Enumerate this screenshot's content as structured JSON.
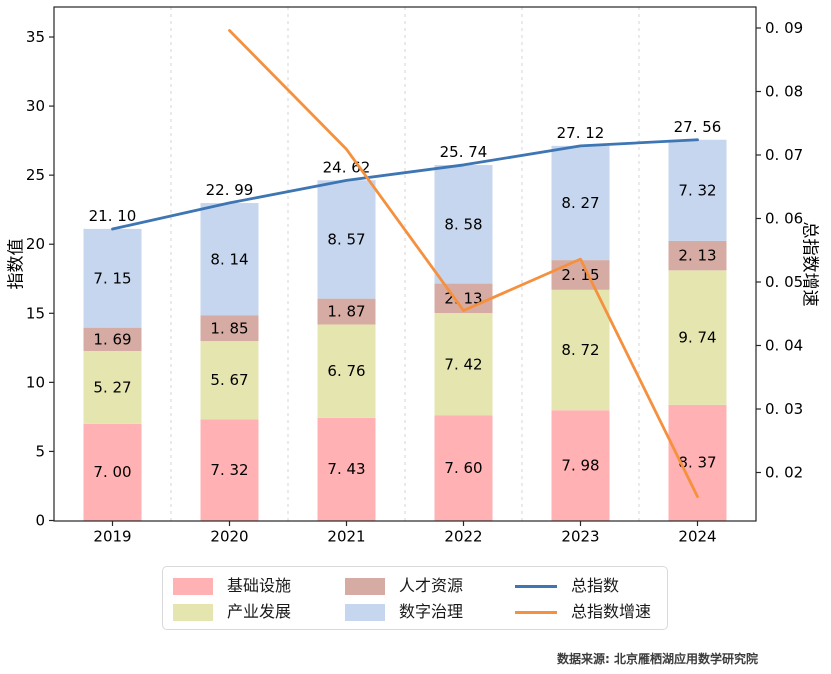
{
  "source_note": "数据来源: 北京雁栖湖应用数学研究院",
  "chart_data": {
    "type": "bar",
    "subtype": "stacked-bars-with-overlay-lines",
    "categories": [
      "2019",
      "2020",
      "2021",
      "2022",
      "2023",
      "2024"
    ],
    "series": [
      {
        "name": "基础设施",
        "type": "bar",
        "color": "#ffb1b3",
        "values": [
          7.0,
          7.32,
          7.43,
          7.6,
          7.98,
          8.37
        ]
      },
      {
        "name": "产业发展",
        "type": "bar",
        "color": "#e5e5b0",
        "values": [
          5.27,
          5.67,
          6.76,
          7.42,
          8.72,
          9.74
        ]
      },
      {
        "name": "人才资源",
        "type": "bar",
        "color": "#d5aba3",
        "values": [
          1.69,
          1.85,
          1.87,
          2.13,
          2.15,
          2.13
        ]
      },
      {
        "name": "数字治理",
        "type": "bar",
        "color": "#c5d6ee",
        "values": [
          7.15,
          8.14,
          8.57,
          8.58,
          8.27,
          7.32
        ]
      },
      {
        "name": "总指数",
        "type": "line",
        "axis": "left",
        "color": "#3d76b3",
        "values": [
          21.1,
          22.99,
          24.62,
          25.74,
          27.12,
          27.56
        ]
      },
      {
        "name": "总指数增速",
        "type": "line",
        "axis": "right",
        "color": "#f5913e",
        "values": [
          null,
          0.0896,
          0.0709,
          0.0455,
          0.0536,
          0.0162
        ]
      }
    ],
    "totals": [
      21.1,
      22.99,
      24.62,
      25.74,
      27.12,
      27.56
    ],
    "ylabel_left": "指数值",
    "ylabel_right": "总指数增速",
    "yticks_left": [
      0,
      5,
      10,
      15,
      20,
      25,
      30,
      35
    ],
    "yticks_right": [
      0.09,
      0.08,
      0.07,
      0.06,
      0.05,
      0.04,
      0.03,
      0.02
    ],
    "ylim_left": [
      0,
      37.2
    ],
    "ylim_right": [
      0.0124,
      0.0933
    ],
    "grid": "vertical-dashed-between-categories",
    "legend_position": "bottom-center",
    "colors": {
      "gridline": "#d6d6d6",
      "spine": "#262626",
      "label_text": "#000000"
    }
  },
  "legend": {
    "items": [
      {
        "label": "基础设施",
        "swatch": "patch",
        "color": "#ffb1b3"
      },
      {
        "label": "产业发展",
        "swatch": "patch",
        "color": "#e5e5b0"
      },
      {
        "label": "人才资源",
        "swatch": "patch",
        "color": "#d5aba3"
      },
      {
        "label": "数字治理",
        "swatch": "patch",
        "color": "#c5d6ee"
      },
      {
        "label": "总指数",
        "swatch": "line",
        "color": "#3d76b3"
      },
      {
        "label": "总指数增速",
        "swatch": "line",
        "color": "#f5913e"
      }
    ]
  }
}
